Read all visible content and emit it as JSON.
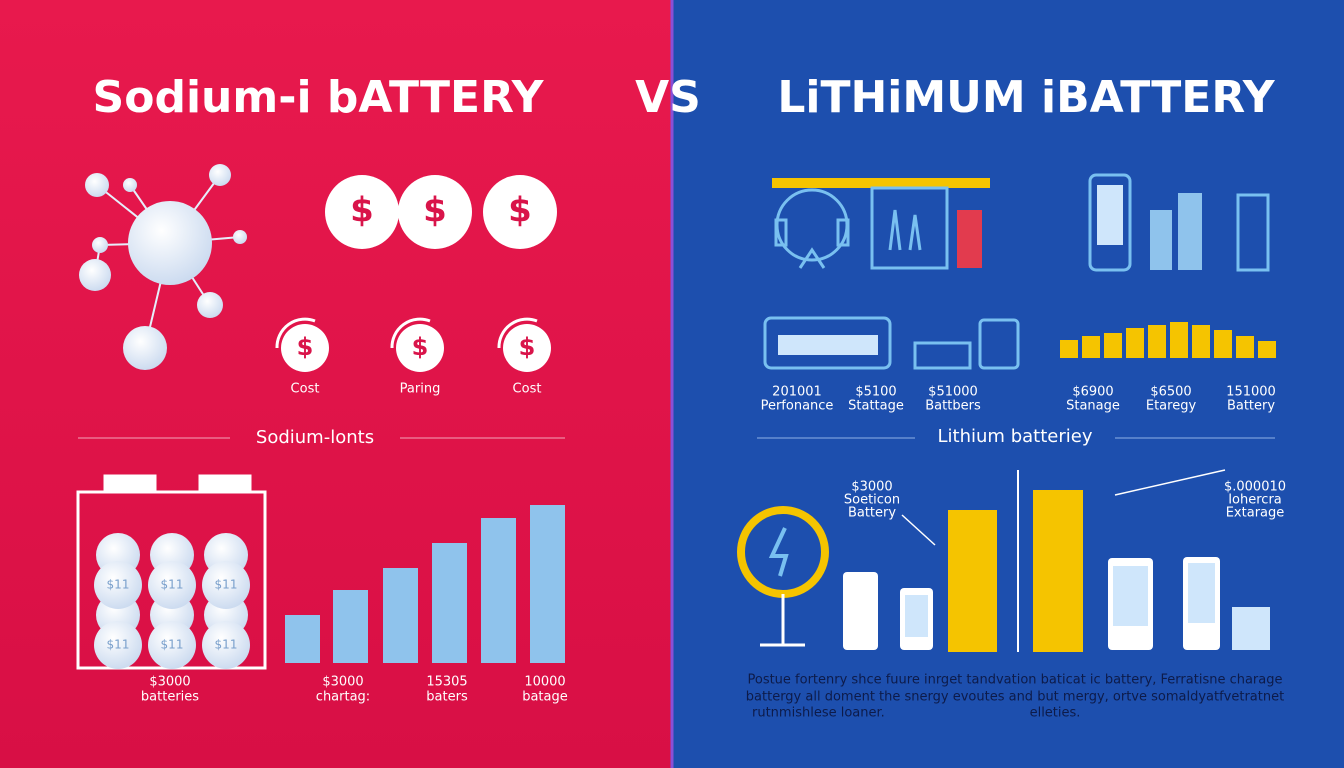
{
  "header": {
    "left_title": "Sodium-i bATTERY",
    "vs": "VS",
    "right_title": "LiTHiMUM iBATTERY"
  },
  "left": {
    "coins": [
      "$",
      "$",
      "$"
    ],
    "ring_coins": [
      "$",
      "$",
      "$"
    ],
    "coin_labels": [
      "Cost",
      "Paring",
      "Cost"
    ],
    "section_title": "Sodium-lonts",
    "cell_labels": [
      "$11",
      "$11",
      "$11",
      "$11",
      "$11",
      "$11"
    ],
    "bar_labels": [
      {
        "amount": "$3000",
        "name": "batteries"
      },
      {
        "amount": "$3000",
        "name": "chartag:"
      },
      {
        "amount": "15305",
        "name": "baters"
      },
      {
        "amount": "10000",
        "name": "batage"
      }
    ]
  },
  "right": {
    "device_labels": [
      {
        "amount": "201001",
        "name": "Perfonance"
      },
      {
        "amount": "$5100",
        "name": "Stattage"
      },
      {
        "amount": "$51000",
        "name": "Battbers"
      },
      {
        "amount": "$6900",
        "name": "Stanage"
      },
      {
        "amount": "$6500",
        "name": "Etaregy"
      },
      {
        "amount": "151000",
        "name": "Battery"
      }
    ],
    "section_title": "Lithium batteriey",
    "callouts": [
      {
        "amount": "$3000",
        "lines": [
          "Soeticon",
          "Battery"
        ]
      },
      {
        "amount": "$.000010",
        "lines": [
          "Iohercra",
          "Extarage"
        ]
      }
    ],
    "paragraph": [
      "Postue fortenry shce fuure inrget tandvation baticat ic battery, Ferratisne charage",
      "battergy all doment the snergy evoutes and but mergy, ortve somaldyatfvetratnet",
      "rutnmishlese loaner.",
      "elleties."
    ]
  }
}
